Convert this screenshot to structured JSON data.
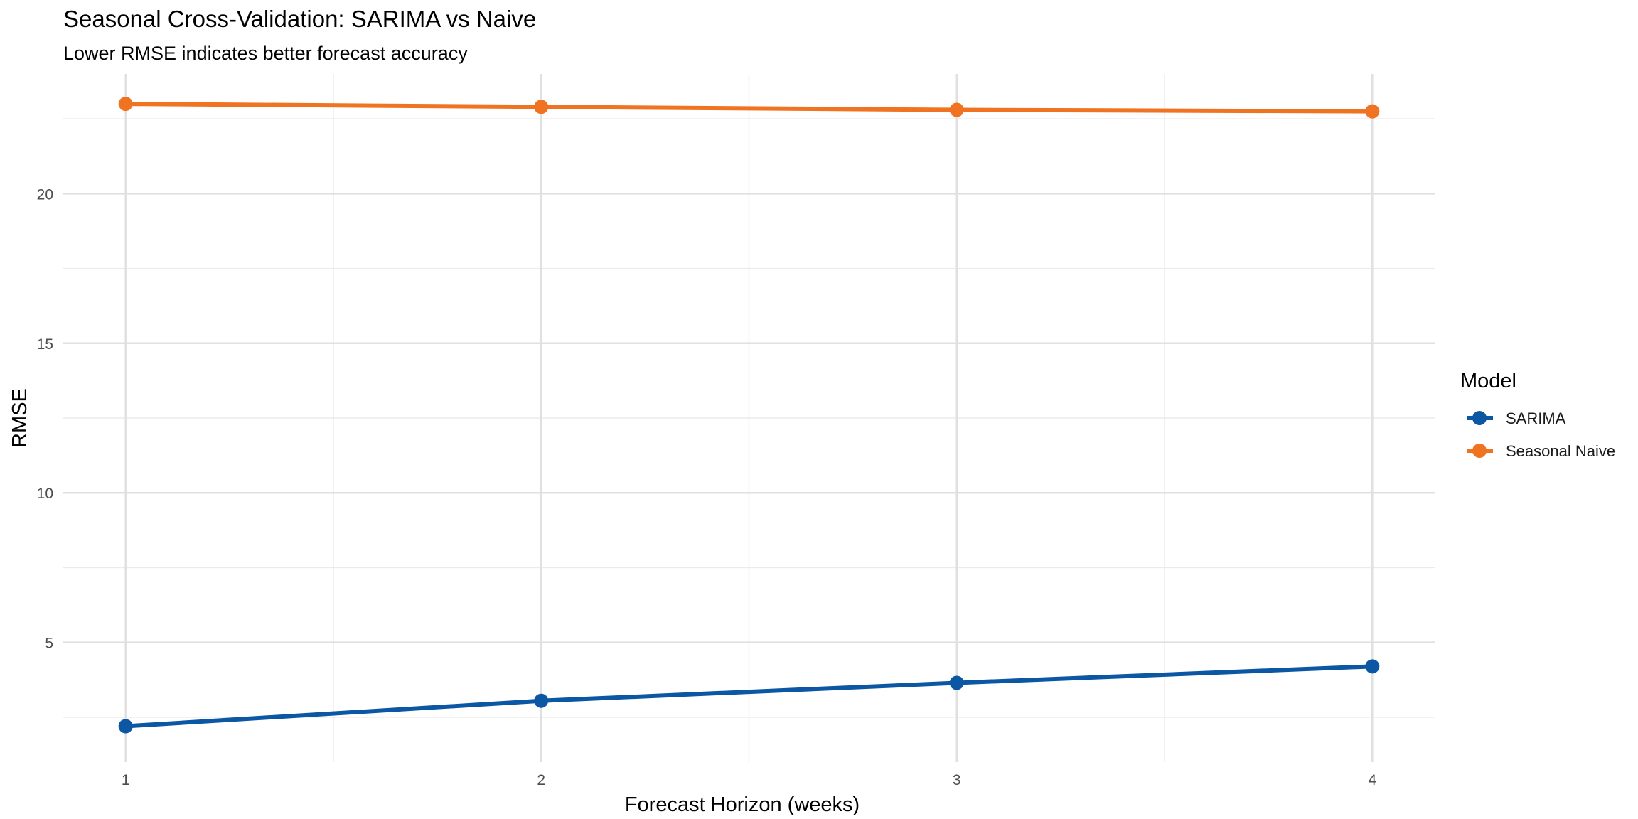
{
  "chart_data": {
    "type": "line",
    "title": "Seasonal Cross-Validation: SARIMA vs Naive",
    "subtitle": "Lower RMSE indicates better forecast accuracy",
    "xlabel": "Forecast Horizon (weeks)",
    "ylabel": "RMSE",
    "x": [
      1,
      2,
      3,
      4
    ],
    "x_ticks": [
      "1",
      "2",
      "3",
      "4"
    ],
    "y_ticks": [
      "5",
      "10",
      "15",
      "20"
    ],
    "xlim": [
      0.85,
      4.15
    ],
    "ylim": [
      1.0,
      24.0
    ],
    "grid": true,
    "legend": {
      "title": "Model",
      "placement": "right"
    },
    "series": [
      {
        "name": "SARIMA",
        "color": "#0b57a4",
        "values": [
          2.2,
          3.05,
          3.65,
          4.2
        ]
      },
      {
        "name": "Seasonal Naive",
        "color": "#f07322",
        "values": [
          23.0,
          22.9,
          22.8,
          22.75
        ]
      }
    ]
  }
}
